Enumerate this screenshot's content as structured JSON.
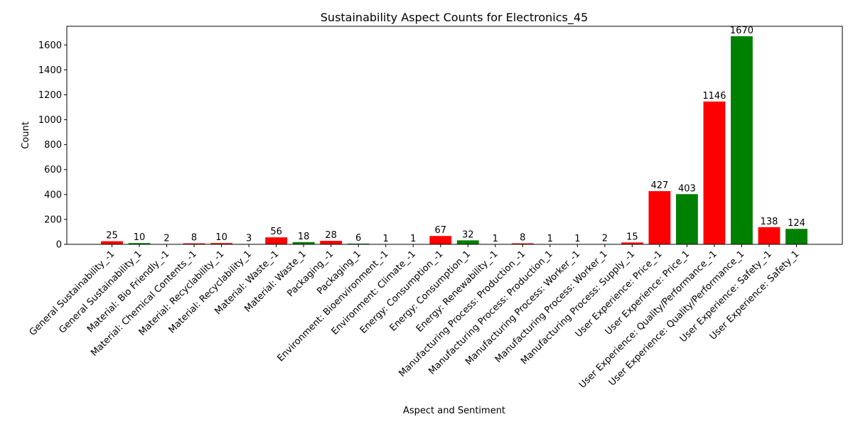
{
  "chart_data": {
    "type": "bar",
    "title": "Sustainability Aspect Counts for Electronics_45",
    "xlabel": "Aspect and Sentiment",
    "ylabel": "Count",
    "ylim": [
      0,
      1750
    ],
    "yticks": [
      0,
      200,
      400,
      600,
      800,
      1000,
      1200,
      1400,
      1600
    ],
    "grid": false,
    "colors": {
      "negative": "#ff0000",
      "positive": "#008000"
    },
    "categories": [
      "General Sustainability_-1",
      "General Sustainability_1",
      "Material: Bio Friendly_-1",
      "Material: Chemical Contents_-1",
      "Material: Recyclability_-1",
      "Material: Recyclability_1",
      "Material: Waste_-1",
      "Material: Waste_1",
      "Packaging_-1",
      "Packaging_1",
      "Environment: Bioenvironment_-1",
      "Environment: Climate_-1",
      "Energy: Consumption_-1",
      "Energy: Consumption_1",
      "Energy: Renewability_-1",
      "Manufacturing Process: Production_-1",
      "Manufacturing Process: Production_1",
      "Manufacturing Process: Worker_-1",
      "Manufacturing Process: Worker_1",
      "Manufacturing Process: Supply_-1",
      "User Experience: Price_-1",
      "User Experience: Price_1",
      "User Experience: Quality/Performance_-1",
      "User Experience: Quality/Performance_1",
      "User Experience: Safety_-1",
      "User Experience: Safety_1"
    ],
    "values": [
      25,
      10,
      2,
      8,
      10,
      3,
      56,
      18,
      28,
      6,
      1,
      1,
      67,
      32,
      1,
      8,
      1,
      1,
      2,
      15,
      427,
      403,
      1146,
      1670,
      138,
      124
    ],
    "bar_colors": [
      "negative",
      "positive",
      "negative",
      "negative",
      "negative",
      "positive",
      "negative",
      "positive",
      "negative",
      "positive",
      "negative",
      "negative",
      "negative",
      "positive",
      "negative",
      "negative",
      "positive",
      "negative",
      "positive",
      "negative",
      "negative",
      "positive",
      "negative",
      "positive",
      "negative",
      "positive"
    ]
  }
}
